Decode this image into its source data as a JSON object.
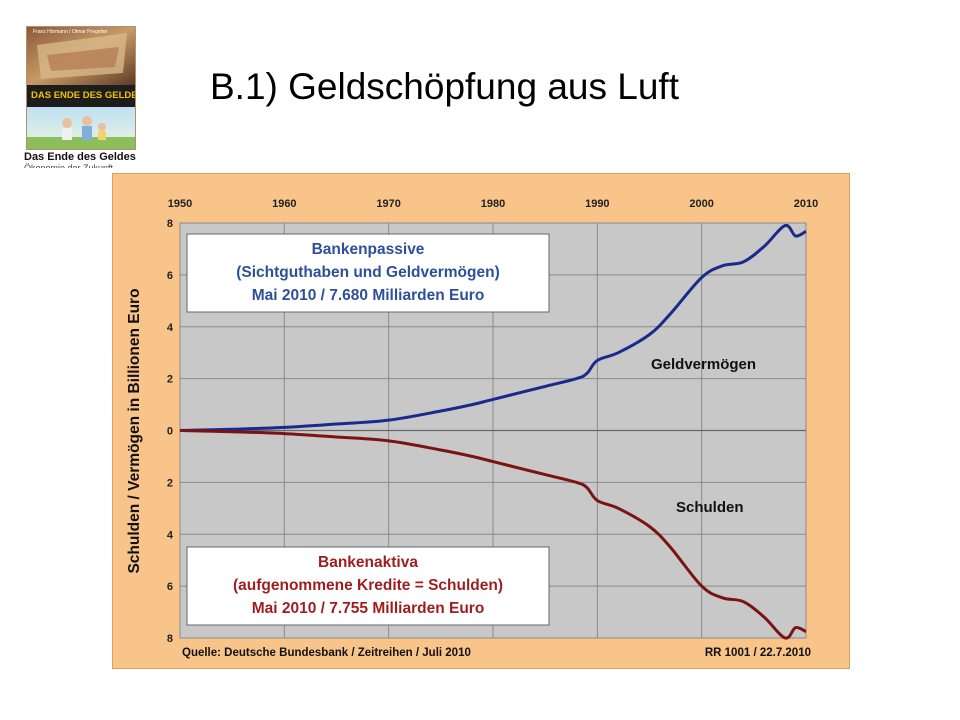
{
  "slide": {
    "title": "B.1) Geldschöpfung aus Luft"
  },
  "book": {
    "cover_top_text": "Franz Hörmann / Otmar Pregetter",
    "cover_title": "DAS ENDE DES GELDES",
    "caption": "Das Ende des Geldes",
    "caption_line2": "Ökonomie der Zukunft"
  },
  "colors": {
    "chart_background": "#f9c48a",
    "plot_background": "#c8c8c8",
    "geldvermoegen_line": "#1a2a8c",
    "schulden_line": "#7a1414",
    "box_text_blue": "#2e4f9a",
    "box_text_red": "#9e1e1e"
  },
  "chart_data": {
    "type": "line",
    "x_ticks": [
      "1950",
      "1960",
      "1970",
      "1980",
      "1990",
      "2000",
      "2010"
    ],
    "xlim": [
      1950,
      2010
    ],
    "y_ticks_upper": [
      "8",
      "6",
      "4",
      "2",
      "0"
    ],
    "y_ticks_lower": [
      "2",
      "4",
      "6",
      "8"
    ],
    "ylim": [
      -8,
      8
    ],
    "ylabel": "Schulden / Vermögen in Billionen Euro",
    "grid": true,
    "series": [
      {
        "name": "Geldvermögen",
        "x": [
          1950,
          1955,
          1960,
          1965,
          1970,
          1975,
          1978,
          1980,
          1983,
          1985,
          1988,
          1989,
          1990,
          1992,
          1995,
          1997,
          2000,
          2002,
          2004,
          2006,
          2008,
          2009,
          2010
        ],
        "values": [
          0.0,
          0.05,
          0.12,
          0.25,
          0.4,
          0.75,
          1.0,
          1.2,
          1.5,
          1.7,
          2.0,
          2.2,
          2.7,
          3.0,
          3.7,
          4.5,
          5.9,
          6.35,
          6.5,
          7.1,
          7.9,
          7.5,
          7.68
        ]
      },
      {
        "name": "Schulden",
        "x": [
          1950,
          1955,
          1960,
          1965,
          1970,
          1975,
          1978,
          1980,
          1983,
          1985,
          1988,
          1989,
          1990,
          1992,
          1995,
          1997,
          2000,
          2002,
          2004,
          2006,
          2008,
          2009,
          2010
        ],
        "values": [
          0.0,
          -0.05,
          -0.12,
          -0.25,
          -0.4,
          -0.75,
          -1.0,
          -1.2,
          -1.5,
          -1.7,
          -2.0,
          -2.2,
          -2.7,
          -3.0,
          -3.7,
          -4.5,
          -6.0,
          -6.45,
          -6.6,
          -7.2,
          -8.0,
          -7.6,
          -7.755
        ]
      }
    ],
    "annotations": {
      "geld_label": "Geldvermögen",
      "schulden_label": "Schulden",
      "box_top": [
        "Bankenpassive",
        "(Sichtguthaben und Geldvermögen)",
        "Mai 2010 / 7.680 Milliarden Euro"
      ],
      "box_bottom": [
        "Bankenaktiva",
        "(aufgenommene Kredite = Schulden)",
        "Mai 2010 / 7.755 Milliarden Euro"
      ]
    },
    "source_left": "Quelle: Deutsche Bundesbank / Zeitreihen / Juli 2010",
    "source_right": "RR 1001 / 22.7.2010"
  }
}
